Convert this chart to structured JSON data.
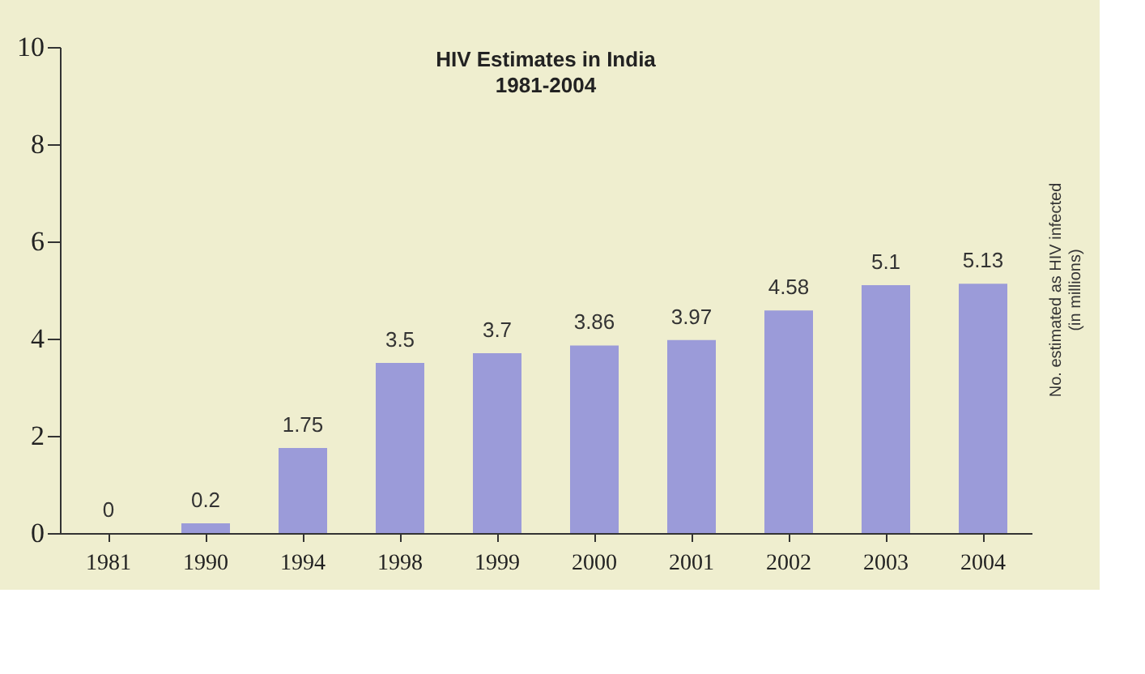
{
  "chart_data": {
    "type": "bar",
    "title": "HIV Estimates in India",
    "subtitle": "1981-2004",
    "ylabel": "No. estimated as HIV infected (in millions)",
    "categories": [
      "1981",
      "1990",
      "1994",
      "1998",
      "1999",
      "2000",
      "2001",
      "2002",
      "2003",
      "2004"
    ],
    "values": [
      0,
      0.2,
      1.75,
      3.5,
      3.7,
      3.86,
      3.97,
      4.58,
      5.1,
      5.13
    ],
    "color": "#9b9bd9",
    "ylim": [
      0,
      10
    ],
    "yticks": [
      0,
      2,
      4,
      6,
      8,
      10
    ],
    "grid": false,
    "data_labels": true
  }
}
